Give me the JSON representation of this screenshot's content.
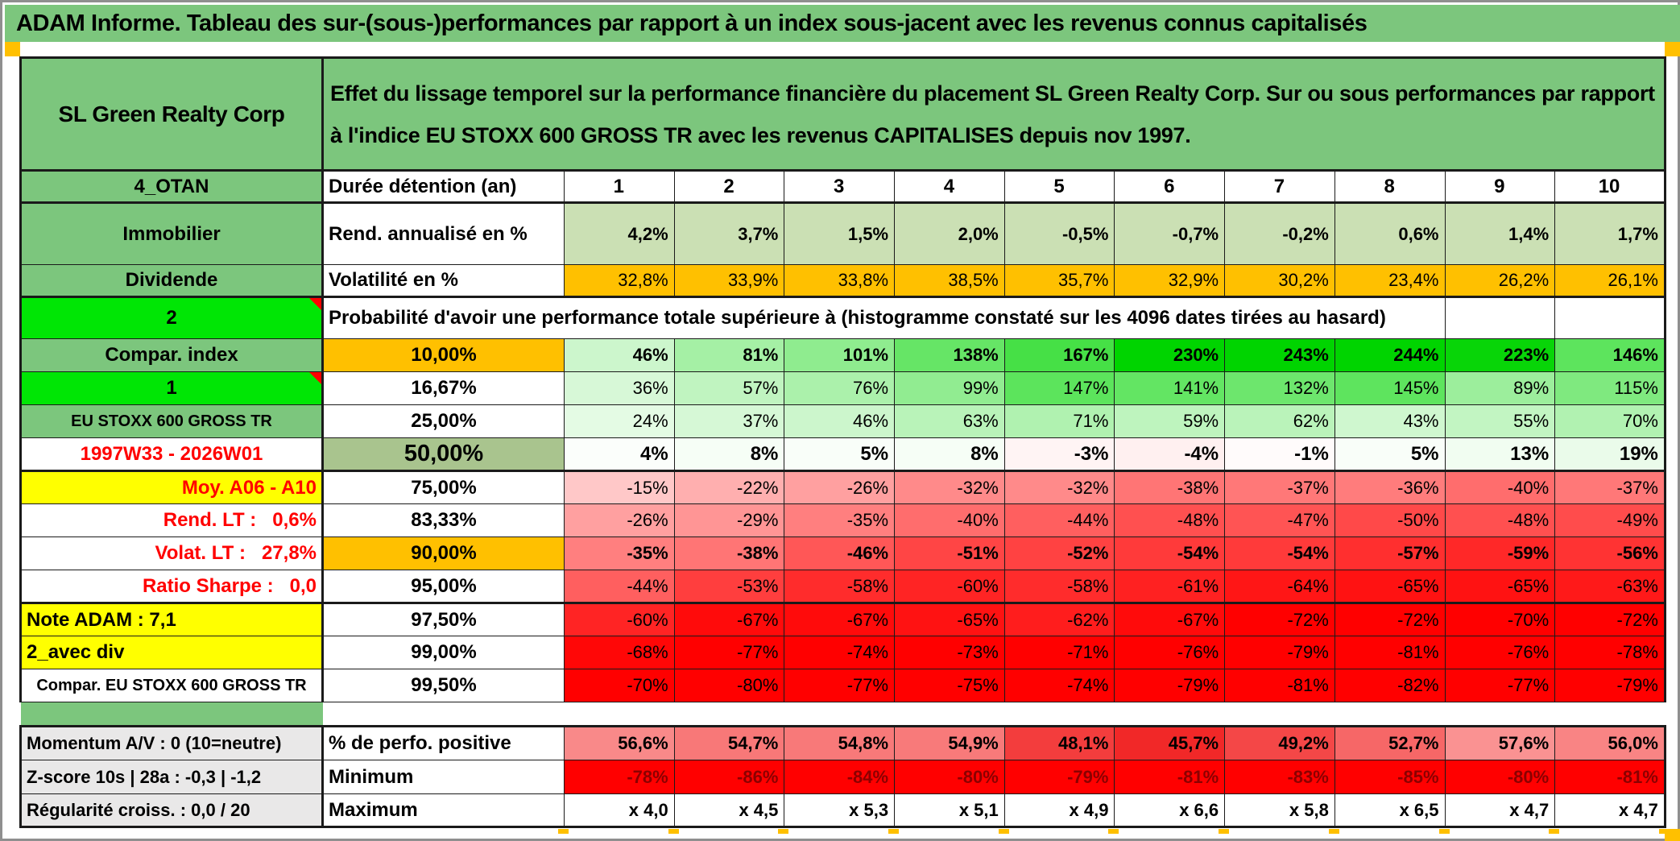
{
  "title": "ADAM Informe. Tableau des sur-(sous-)performances par rapport à un index sous-jacent avec les revenus connus capitalisés",
  "security": {
    "name": "SL Green Realty Corp",
    "description": "Effet du lissage temporel sur la performance financière du placement SL Green Realty Corp. Sur ou sous performances par rapport à l'indice EU STOXX 600 GROSS TR avec les revenus CAPITALISES depuis nov 1997."
  },
  "holding": {
    "row_label": "4_OTAN",
    "label": "Durée détention (an)",
    "durations": [
      "1",
      "2",
      "3",
      "4",
      "5",
      "6",
      "7",
      "8",
      "9",
      "10"
    ]
  },
  "annual_return": {
    "row_label": "Immobilier",
    "label": "Rend. annualisé en %",
    "values": [
      "4,2%",
      "3,7%",
      "1,5%",
      "2,0%",
      "-0,5%",
      "-0,7%",
      "-0,2%",
      "0,6%",
      "1,4%",
      "1,7%"
    ]
  },
  "volatility": {
    "row_label": "Dividende",
    "label": "Volatilité en %",
    "values": [
      "32,8%",
      "33,9%",
      "33,8%",
      "38,5%",
      "35,7%",
      "32,9%",
      "30,2%",
      "23,4%",
      "26,2%",
      "26,1%"
    ]
  },
  "probability": {
    "row_label": "2",
    "note": "Probabilité d'avoir une performance totale supérieure à (histogramme constaté sur les 4096 dates tirées au hasard)"
  },
  "percentile_rows": [
    {
      "label": "Compar. index",
      "pct": "10,00%",
      "values": [
        "46%",
        "81%",
        "101%",
        "138%",
        "167%",
        "230%",
        "243%",
        "244%",
        "223%",
        "146%"
      ]
    },
    {
      "label": "1",
      "pct": "16,67%",
      "values": [
        "36%",
        "57%",
        "76%",
        "99%",
        "147%",
        "141%",
        "132%",
        "145%",
        "89%",
        "115%"
      ]
    },
    {
      "label": "EU STOXX 600 GROSS TR",
      "pct": "25,00%",
      "values": [
        "24%",
        "37%",
        "46%",
        "63%",
        "71%",
        "59%",
        "62%",
        "43%",
        "55%",
        "70%"
      ]
    },
    {
      "label": "1997W33 - 2026W01",
      "pct": "50,00%",
      "values": [
        "4%",
        "8%",
        "5%",
        "8%",
        "-3%",
        "-4%",
        "-1%",
        "5%",
        "13%",
        "19%"
      ]
    },
    {
      "label": "Moy. A06 - A10",
      "pct": "75,00%",
      "values": [
        "-15%",
        "-22%",
        "-26%",
        "-32%",
        "-32%",
        "-38%",
        "-37%",
        "-36%",
        "-40%",
        "-37%"
      ]
    },
    {
      "label": "Rend. LT :   0,6%",
      "pct": "83,33%",
      "values": [
        "-26%",
        "-29%",
        "-35%",
        "-40%",
        "-44%",
        "-48%",
        "-47%",
        "-50%",
        "-48%",
        "-49%"
      ]
    },
    {
      "label": "Volat. LT :   27,8%",
      "pct": "90,00%",
      "values": [
        "-35%",
        "-38%",
        "-46%",
        "-51%",
        "-52%",
        "-54%",
        "-54%",
        "-57%",
        "-59%",
        "-56%"
      ]
    },
    {
      "label": "Ratio Sharpe :   0,0",
      "pct": "95,00%",
      "values": [
        "-44%",
        "-53%",
        "-58%",
        "-60%",
        "-58%",
        "-61%",
        "-64%",
        "-65%",
        "-65%",
        "-63%"
      ]
    },
    {
      "label": "Note ADAM : 7,1",
      "pct": "97,50%",
      "values": [
        "-60%",
        "-67%",
        "-67%",
        "-65%",
        "-62%",
        "-67%",
        "-72%",
        "-72%",
        "-70%",
        "-72%"
      ]
    },
    {
      "label": "2_avec div",
      "pct": "99,00%",
      "values": [
        "-68%",
        "-77%",
        "-74%",
        "-73%",
        "-71%",
        "-76%",
        "-79%",
        "-81%",
        "-76%",
        "-78%"
      ]
    },
    {
      "label": "Compar. EU STOXX 600 GROSS TR",
      "pct": "99,50%",
      "values": [
        "-70%",
        "-80%",
        "-77%",
        "-75%",
        "-74%",
        "-79%",
        "-81%",
        "-82%",
        "-77%",
        "-79%"
      ]
    }
  ],
  "summary_rows": [
    {
      "label": "Momentum A/V : 0 (10=neutre)",
      "metric": "% de perfo. positive",
      "values": [
        "56,6%",
        "54,7%",
        "54,8%",
        "54,9%",
        "48,1%",
        "45,7%",
        "49,2%",
        "52,7%",
        "57,6%",
        "56,0%"
      ]
    },
    {
      "label": "Z-score 10s | 28a : -0,3 | -1,2",
      "metric": "Minimum",
      "values": [
        "-78%",
        "-86%",
        "-84%",
        "-80%",
        "-79%",
        "-81%",
        "-83%",
        "-85%",
        "-80%",
        "-81%"
      ]
    },
    {
      "label": "Régularité croiss. : 0,0 / 20",
      "metric": "Maximum",
      "values": [
        "x 4,0",
        "x 4,5",
        "x 5,3",
        "x 5,1",
        "x 4,9",
        "x 6,6",
        "x 5,8",
        "x 6,5",
        "x 4,7",
        "x 4,7"
      ]
    }
  ],
  "colors": {
    "header_green": "#7CC67D",
    "bright_green": "#00E605",
    "orange": "#FFC000",
    "yellow": "#FFFF00",
    "pale_green": "#CBE0B4",
    "muted_green": "#A9C48E",
    "full_green": "#00D400",
    "full_red": "#FF0000",
    "dark_red_text": "#8B0000"
  }
}
